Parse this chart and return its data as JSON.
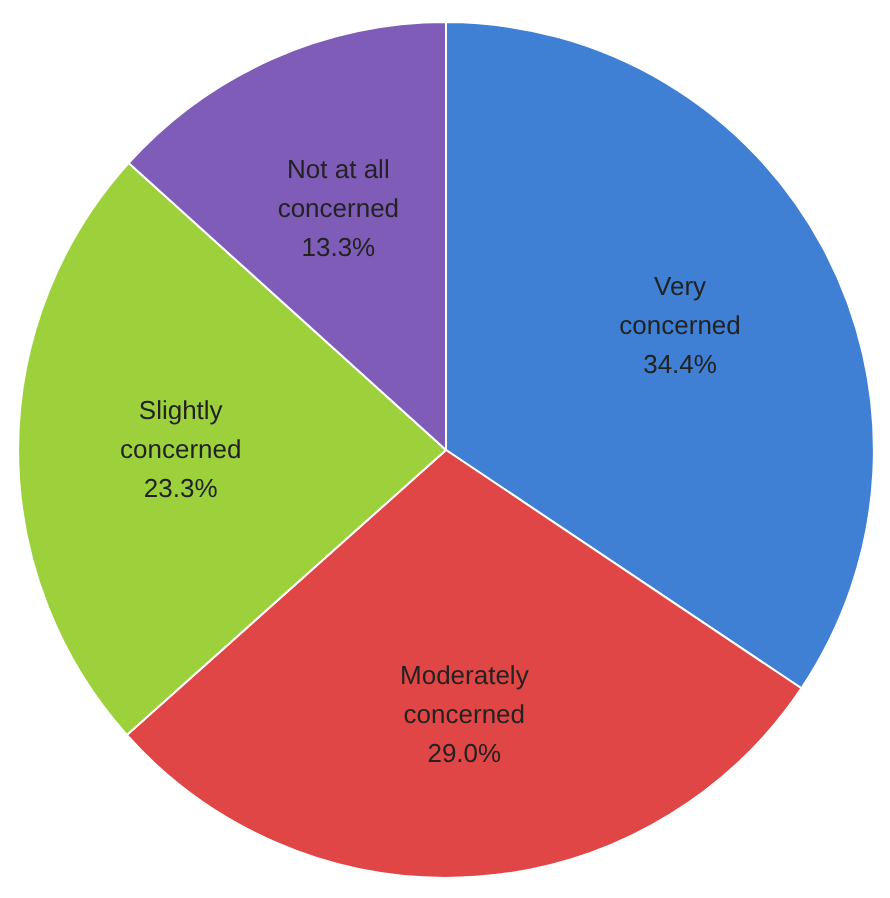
{
  "chart_data": {
    "type": "pie",
    "categories": [
      "Very concerned",
      "Moderately concerned",
      "Slightly concerned",
      "Not at all concerned"
    ],
    "values": [
      34.4,
      29.0,
      23.3,
      13.3
    ],
    "colors": [
      "#3f7fd4",
      "#e04646",
      "#9cd13b",
      "#7f5cb8"
    ],
    "value_labels": [
      "34.4%",
      "29.0%",
      "23.3%",
      "13.3%"
    ]
  }
}
